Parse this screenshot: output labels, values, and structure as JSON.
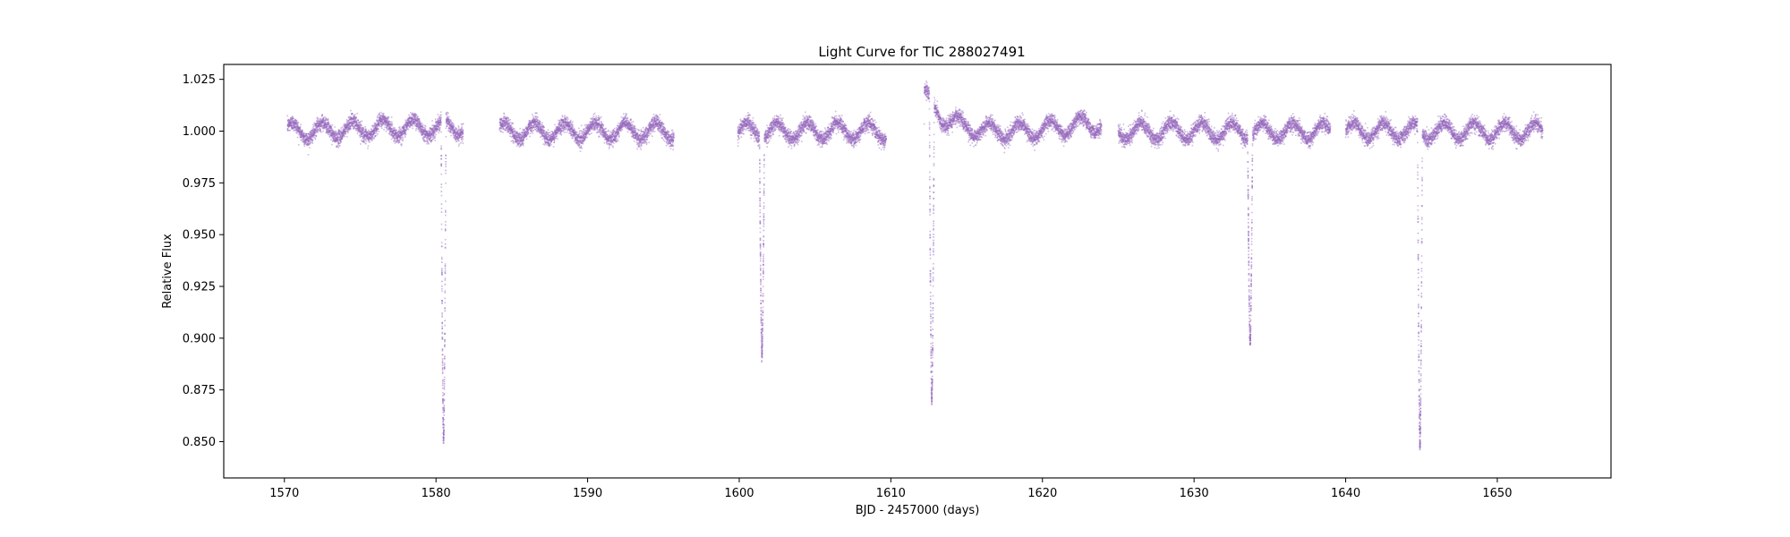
{
  "chart_data": {
    "type": "scatter",
    "title": "Light Curve for TIC 288027491",
    "xlabel": "BJD - 2457000 (days)",
    "ylabel": "Relative Flux",
    "xlim": [
      1566,
      1657.5
    ],
    "ylim": [
      0.8325,
      1.0322
    ],
    "x_ticks": [
      1570,
      1580,
      1590,
      1600,
      1610,
      1620,
      1630,
      1640,
      1650
    ],
    "y_ticks": [
      0.85,
      0.875,
      0.9,
      0.925,
      0.95,
      0.975,
      1.0,
      1.025
    ],
    "x_tick_labels": [
      "1570",
      "1580",
      "1590",
      "1600",
      "1610",
      "1620",
      "1630",
      "1640",
      "1650"
    ],
    "y_tick_labels": [
      "0.850",
      "0.875",
      "0.900",
      "0.925",
      "0.950",
      "0.975",
      "1.000",
      "1.025"
    ],
    "grid": false,
    "legend": "none",
    "marker_color": "#9467bd",
    "observing_segments": [
      {
        "x_start": 1570.2,
        "x_end": 1581.8
      },
      {
        "x_start": 1584.2,
        "x_end": 1595.7
      },
      {
        "x_start": 1599.9,
        "x_end": 1609.7
      },
      {
        "x_start": 1612.2,
        "x_end": 1623.9
      },
      {
        "x_start": 1625.0,
        "x_end": 1639.0
      },
      {
        "x_start": 1640.0,
        "x_end": 1653.0
      }
    ],
    "eclipses": [
      {
        "x_center": 1580.5,
        "min_flux": 0.845
      },
      {
        "x_center": 1601.5,
        "min_flux": 0.896
      },
      {
        "x_center": 1612.7,
        "min_flux": 0.854
      },
      {
        "x_center": 1633.7,
        "min_flux": 0.9
      },
      {
        "x_center": 1644.9,
        "min_flux": 0.846
      }
    ],
    "baseline_flux": 1.0,
    "variability_amplitude": 0.004,
    "variability_period_days": 2.0
  }
}
